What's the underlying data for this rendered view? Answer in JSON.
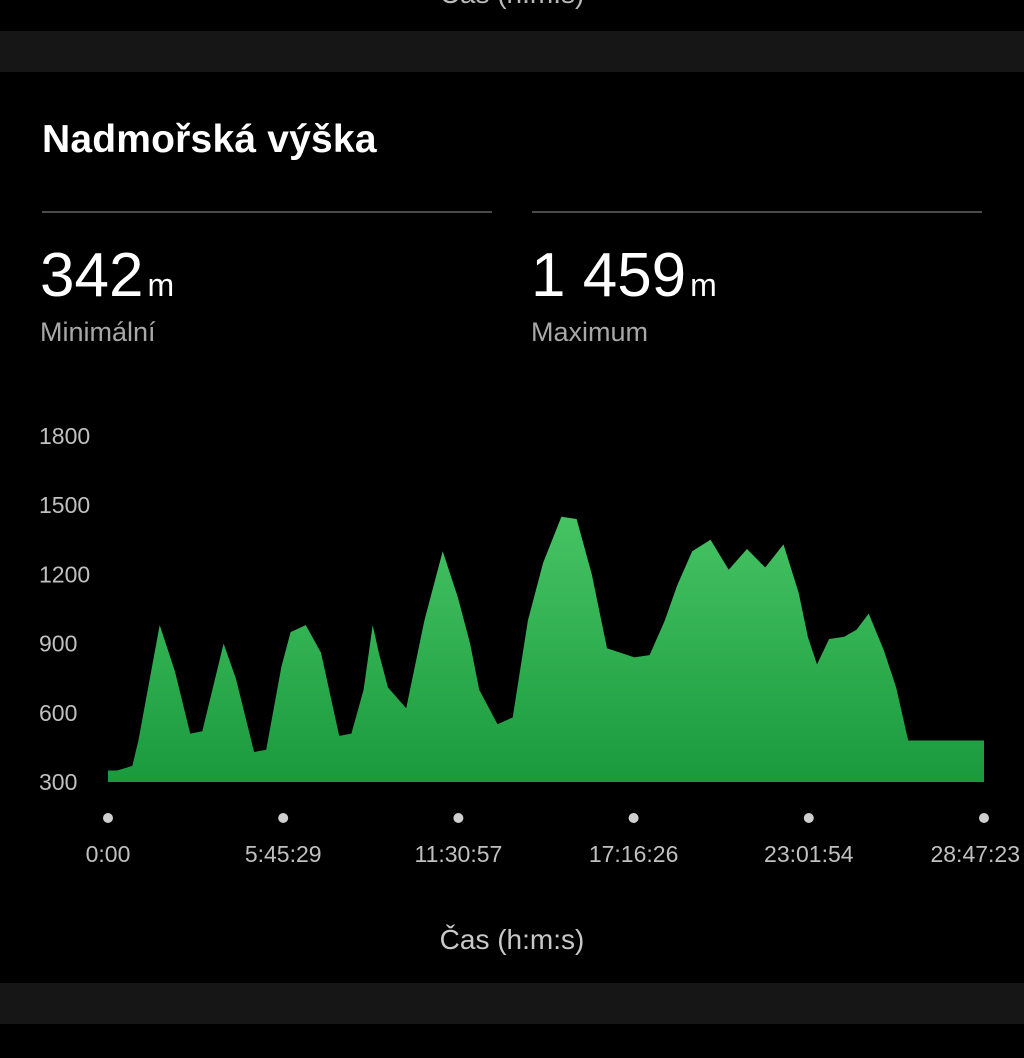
{
  "header": {
    "partial_label": "Čas (h:m:s)"
  },
  "card": {
    "title": "Nadmořská výška"
  },
  "stats": {
    "min": {
      "value": "342",
      "unit": "m",
      "label": "Minimální"
    },
    "max": {
      "value": "1 459",
      "unit": "m",
      "label": "Maximum"
    }
  },
  "chart_data": {
    "type": "area",
    "title": "Nadmořská výška",
    "xlabel": "Čas (h:m:s)",
    "ylabel": "",
    "ylim": [
      300,
      1800
    ],
    "yticks": [
      300,
      600,
      900,
      1200,
      1500,
      1800
    ],
    "xticks": [
      "0:00",
      "5:45:29",
      "11:30:57",
      "17:16:26",
      "23:01:54",
      "28:47:23"
    ],
    "xlim_hours": [
      0,
      28.79
    ],
    "grid": false,
    "color": "#22a043",
    "series": [
      {
        "x_hours": [
          0,
          0.3,
          0.8,
          1.0,
          1.7,
          2.2,
          2.7,
          3.1,
          3.8,
          4.2,
          4.8,
          5.2,
          5.7,
          6.0,
          6.5,
          7.0,
          7.6,
          8.0,
          8.4,
          8.7,
          8.9,
          9.2,
          9.8,
          10.4,
          11.0,
          11.5,
          11.9,
          12.2,
          12.8,
          13.3,
          13.8,
          14.3,
          14.9,
          15.4,
          15.9,
          16.4,
          17.3,
          17.8,
          18.3,
          18.7,
          19.2,
          19.8,
          20.4,
          21.0,
          21.6,
          22.2,
          22.7,
          23.0,
          23.3,
          23.7,
          24.2,
          24.6,
          25.0,
          25.5,
          25.9,
          26.3,
          26.9,
          27.6,
          28.1,
          28.5,
          28.79
        ],
        "values": [
          350,
          350,
          370,
          480,
          980,
          780,
          510,
          520,
          900,
          750,
          430,
          440,
          800,
          950,
          980,
          860,
          500,
          510,
          700,
          980,
          860,
          710,
          620,
          1000,
          1300,
          1100,
          900,
          700,
          550,
          580,
          1000,
          1250,
          1450,
          1440,
          1200,
          880,
          840,
          850,
          1000,
          1150,
          1300,
          1350,
          1220,
          1310,
          1230,
          1330,
          1120,
          930,
          810,
          920,
          930,
          960,
          1030,
          870,
          710,
          480,
          480,
          480,
          480,
          480,
          480
        ]
      }
    ]
  }
}
